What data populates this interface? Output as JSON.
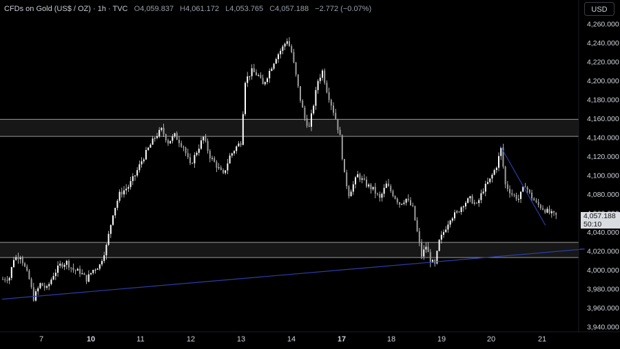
{
  "header": {
    "symbol": "CFDs on Gold (US$ / OZ) · 1h · TVC",
    "open_label": "O",
    "open": "4,059.837",
    "high_label": "H",
    "high": "4,061.172",
    "low_label": "L",
    "low": "4,053.765",
    "close_label": "C",
    "close": "4,057.188",
    "change": "−2.772 (−0.07%)"
  },
  "currency_button": "USD",
  "last_price": {
    "value": "4,057.188",
    "countdown": "50:10"
  },
  "colors": {
    "background": "#000000",
    "candle": "#ffffff",
    "trendline": "#2a3fa8",
    "zone_line": "#9a9a9a",
    "zone_fill": "#1a1a1a"
  },
  "chart_data": {
    "type": "candlestick",
    "title": "",
    "xlabel": "",
    "ylabel": "",
    "ylim": [
      3930,
      4270
    ],
    "y_ticks": [
      "4,260.000",
      "4,240.000",
      "4,220.000",
      "4,200.000",
      "4,180.000",
      "4,160.000",
      "4,140.000",
      "4,120.000",
      "4,100.000",
      "4,080.000",
      "4,060.000",
      "4,040.000",
      "4,020.000",
      "4,000.000",
      "3,980.000",
      "3,960.000",
      "3,940.000"
    ],
    "y_tick_values": [
      4260,
      4240,
      4220,
      4200,
      4180,
      4160,
      4140,
      4120,
      4100,
      4080,
      4060,
      4040,
      4020,
      4000,
      3980,
      3960,
      3940
    ],
    "x_tick_labels": [
      "7",
      "10",
      "11",
      "12",
      "13",
      "14",
      "17",
      "18",
      "19",
      "20",
      "21"
    ],
    "x_tick_bold": [
      false,
      true,
      false,
      false,
      false,
      false,
      true,
      false,
      false,
      false,
      false
    ],
    "x_tick_index": [
      20,
      53,
      76,
      99,
      122,
      145,
      168,
      191,
      214,
      237,
      260
    ],
    "bars_shown": 252,
    "resistance_zone": [
      4141,
      4159
    ],
    "support_zone": [
      4013,
      4029
    ],
    "rising_trendline": [
      [
        0,
        3969
      ],
      [
        283,
        4022
      ]
    ],
    "falling_trendline": [
      [
        226,
        4131
      ],
      [
        259,
        4047
      ]
    ],
    "path": [
      [
        0,
        3990
      ],
      [
        3,
        3992
      ],
      [
        5,
        4012
      ],
      [
        8,
        4015
      ],
      [
        12,
        3990
      ],
      [
        14,
        3970
      ],
      [
        17,
        3985
      ],
      [
        20,
        3980
      ],
      [
        23,
        3995
      ],
      [
        26,
        4005
      ],
      [
        29,
        4008
      ],
      [
        32,
        4000
      ],
      [
        35,
        3998
      ],
      [
        38,
        3990
      ],
      [
        41,
        4000
      ],
      [
        44,
        4005
      ],
      [
        47,
        4025
      ],
      [
        50,
        4060
      ],
      [
        53,
        4080
      ],
      [
        57,
        4088
      ],
      [
        60,
        4100
      ],
      [
        63,
        4115
      ],
      [
        66,
        4128
      ],
      [
        69,
        4140
      ],
      [
        72,
        4148
      ],
      [
        75,
        4135
      ],
      [
        78,
        4142
      ],
      [
        82,
        4130
      ],
      [
        85,
        4110
      ],
      [
        88,
        4125
      ],
      [
        91,
        4140
      ],
      [
        94,
        4120
      ],
      [
        97,
        4110
      ],
      [
        100,
        4100
      ],
      [
        103,
        4120
      ],
      [
        106,
        4130
      ],
      [
        108,
        4135
      ],
      [
        110,
        4200
      ],
      [
        113,
        4210
      ],
      [
        116,
        4205
      ],
      [
        118,
        4195
      ],
      [
        121,
        4210
      ],
      [
        124,
        4225
      ],
      [
        127,
        4235
      ],
      [
        129,
        4243
      ],
      [
        131,
        4230
      ],
      [
        133,
        4205
      ],
      [
        135,
        4180
      ],
      [
        137,
        4160
      ],
      [
        139,
        4150
      ],
      [
        141,
        4175
      ],
      [
        143,
        4200
      ],
      [
        145,
        4210
      ],
      [
        147,
        4190
      ],
      [
        149,
        4175
      ],
      [
        151,
        4160
      ],
      [
        153,
        4140
      ],
      [
        155,
        4100
      ],
      [
        157,
        4080
      ],
      [
        159,
        4090
      ],
      [
        161,
        4100
      ],
      [
        163,
        4095
      ],
      [
        165,
        4090
      ],
      [
        168,
        4085
      ],
      [
        171,
        4075
      ],
      [
        174,
        4090
      ],
      [
        177,
        4080
      ],
      [
        180,
        4070
      ],
      [
        183,
        4075
      ],
      [
        186,
        4065
      ],
      [
        188,
        4040
      ],
      [
        190,
        4015
      ],
      [
        192,
        4025
      ],
      [
        194,
        4010
      ],
      [
        196,
        4005
      ],
      [
        198,
        4030
      ],
      [
        200,
        4040
      ],
      [
        203,
        4055
      ],
      [
        206,
        4060
      ],
      [
        209,
        4070
      ],
      [
        212,
        4075
      ],
      [
        215,
        4068
      ],
      [
        218,
        4085
      ],
      [
        221,
        4095
      ],
      [
        224,
        4110
      ],
      [
        226,
        4128
      ],
      [
        228,
        4090
      ],
      [
        231,
        4080
      ],
      [
        234,
        4075
      ],
      [
        237,
        4090
      ],
      [
        239,
        4080
      ],
      [
        242,
        4070
      ],
      [
        245,
        4065
      ],
      [
        248,
        4060
      ],
      [
        251,
        4057
      ]
    ]
  }
}
